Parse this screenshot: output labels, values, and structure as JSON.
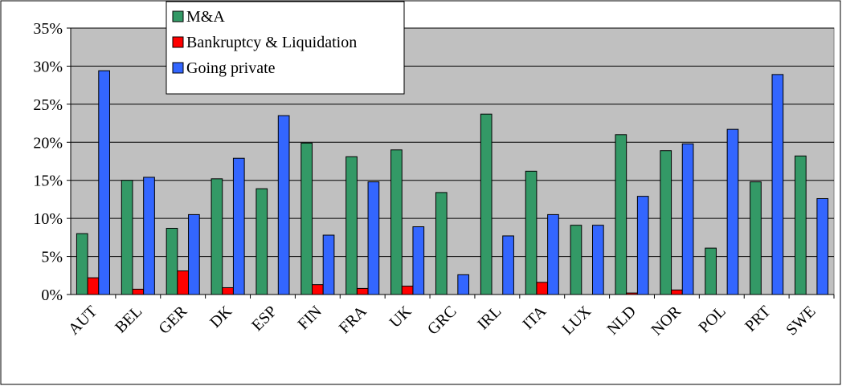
{
  "chart_data": {
    "type": "bar",
    "categories": [
      "AUT",
      "BEL",
      "GER",
      "DK",
      "ESP",
      "FIN",
      "FRA",
      "UK",
      "GRC",
      "IRL",
      "ITA",
      "LUX",
      "NLD",
      "NOR",
      "POL",
      "PRT",
      "SWE"
    ],
    "series": [
      {
        "name": "M&A",
        "color": "#339966",
        "values": [
          8,
          15,
          8.7,
          15.2,
          13.9,
          19.9,
          18.1,
          19,
          13.4,
          23.7,
          16.2,
          9.1,
          21,
          18.9,
          6.1,
          14.8,
          18.2
        ]
      },
      {
        "name": "Bankruptcy & Liquidation",
        "color": "#ff0000",
        "values": [
          2.2,
          0.7,
          3.1,
          0.9,
          0,
          1.3,
          0.8,
          1.1,
          0,
          0,
          1.6,
          0,
          0.2,
          0.6,
          0,
          0,
          0
        ]
      },
      {
        "name": "Going private",
        "color": "#3366ff",
        "values": [
          29.4,
          15.4,
          10.5,
          17.9,
          23.5,
          7.8,
          14.8,
          8.9,
          2.6,
          7.7,
          10.5,
          9.1,
          12.9,
          19.8,
          21.7,
          28.9,
          12.6
        ]
      }
    ],
    "ylim": [
      0,
      35
    ],
    "yticks": [
      {
        "value": 0,
        "label": "0%"
      },
      {
        "value": 5,
        "label": "5%"
      },
      {
        "value": 10,
        "label": "10%"
      },
      {
        "value": 15,
        "label": "15%"
      },
      {
        "value": 20,
        "label": "20%"
      },
      {
        "value": 25,
        "label": "25%"
      },
      {
        "value": 30,
        "label": "30%"
      },
      {
        "value": 35,
        "label": "35%"
      }
    ],
    "grid": true
  }
}
